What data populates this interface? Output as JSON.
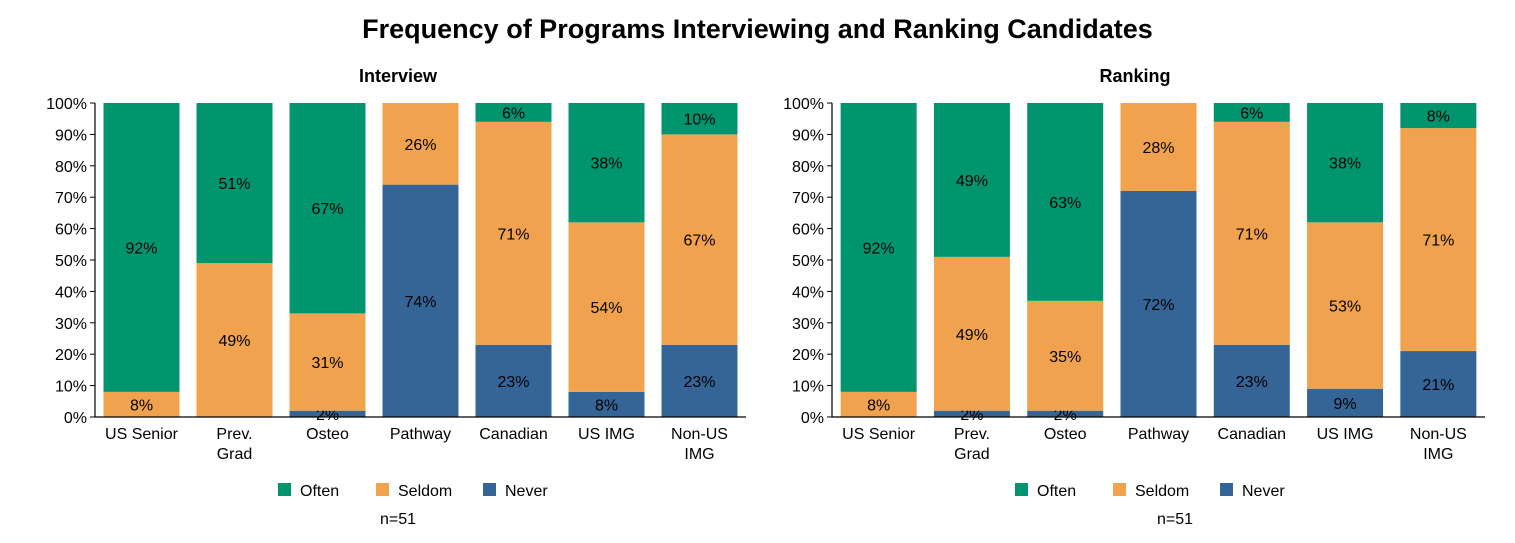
{
  "title": "Frequency of Programs Interviewing and Ranking Candidates",
  "colors": {
    "Often": "#00956e",
    "Seldom": "#f0a24e",
    "Never": "#356496"
  },
  "chart_data": [
    {
      "type": "bar",
      "stacked": true,
      "title": "Interview",
      "categories": [
        [
          "US Senior"
        ],
        [
          "Prev.",
          "Grad"
        ],
        [
          "Osteo"
        ],
        [
          "Pathway"
        ],
        [
          "Canadian"
        ],
        [
          "US IMG"
        ],
        [
          "Non-US",
          "IMG"
        ]
      ],
      "series": [
        {
          "name": "Never",
          "values": [
            0,
            0,
            2,
            74,
            23,
            8,
            23
          ]
        },
        {
          "name": "Seldom",
          "values": [
            8,
            49,
            31,
            26,
            71,
            54,
            67
          ]
        },
        {
          "name": "Often",
          "values": [
            92,
            51,
            67,
            0,
            6,
            38,
            10
          ]
        }
      ],
      "yticks": [
        "0%",
        "10%",
        "20%",
        "30%",
        "40%",
        "50%",
        "60%",
        "70%",
        "80%",
        "90%",
        "100%"
      ],
      "ylim": [
        0,
        100
      ],
      "legend": [
        "Often",
        "Seldom",
        "Never"
      ],
      "legend_position": "bottom",
      "note": "n=51"
    },
    {
      "type": "bar",
      "stacked": true,
      "title": "Ranking",
      "categories": [
        [
          "US Senior"
        ],
        [
          "Prev.",
          "Grad"
        ],
        [
          "Osteo"
        ],
        [
          "Pathway"
        ],
        [
          "Canadian"
        ],
        [
          "US IMG"
        ],
        [
          "Non-US",
          "IMG"
        ]
      ],
      "series": [
        {
          "name": "Never",
          "values": [
            0,
            2,
            2,
            72,
            23,
            9,
            21
          ]
        },
        {
          "name": "Seldom",
          "values": [
            8,
            49,
            35,
            28,
            71,
            53,
            71
          ]
        },
        {
          "name": "Often",
          "values": [
            92,
            49,
            63,
            0,
            6,
            38,
            8
          ]
        }
      ],
      "yticks": [
        "0%",
        "10%",
        "20%",
        "30%",
        "40%",
        "50%",
        "60%",
        "70%",
        "80%",
        "90%",
        "100%"
      ],
      "ylim": [
        0,
        100
      ],
      "legend": [
        "Often",
        "Seldom",
        "Never"
      ],
      "legend_position": "bottom",
      "note": "n=51"
    }
  ]
}
